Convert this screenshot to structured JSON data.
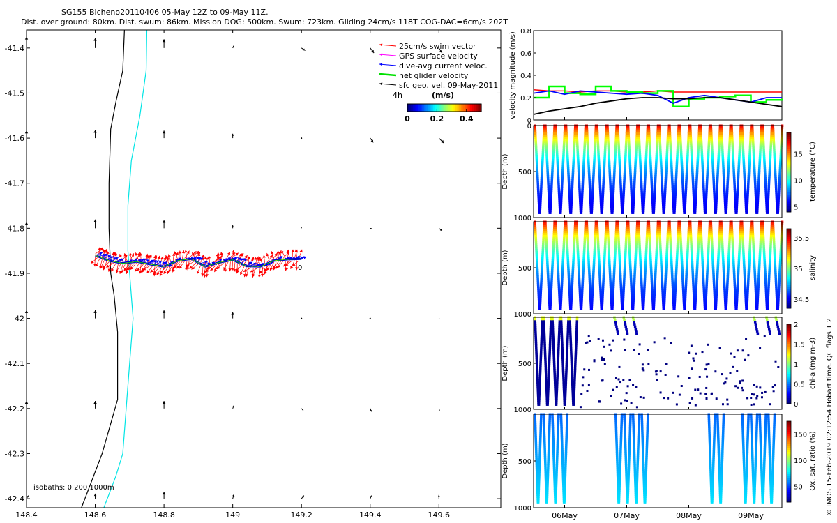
{
  "header": {
    "title_line1": "SG155 Bicheno20110406 05-May 12Z to 09-May 11Z.",
    "title_line2": "Dist. over ground: 80km. Dist. swum: 86km. Mission DOG: 500km. Swum: 723km. Gliding 24cm/s 118T COG-DAC=6cm/s 202T"
  },
  "side_note": "© IMOS 15-Feb-2019 02:12:54 Hobart time. QC flags 1 2",
  "chart_data": [
    {
      "id": "map",
      "type": "scatter",
      "xlim": [
        148.4,
        149.78
      ],
      "ylim": [
        -42.42,
        -41.36
      ],
      "x_ticks": [
        "148.4",
        "148.6",
        "148.8",
        "149",
        "149.2",
        "149.4",
        "149.6"
      ],
      "y_ticks": [
        "-41.4",
        "-41.5",
        "-41.6",
        "-41.7",
        "-41.8",
        "-41.9",
        "-42",
        "-42.1",
        "-42.2",
        "-42.3",
        "-42.4"
      ],
      "legend": {
        "placement": "top-right",
        "entries": [
          {
            "label": "25cm/s swim vector",
            "color": "#ff0000"
          },
          {
            "label": "GPS surface velocity",
            "color": "#ff00ff"
          },
          {
            "label": "dive-avg current veloc.",
            "color": "#0000ff"
          },
          {
            "label": "net glider velocity",
            "color": "#00e000"
          },
          {
            "label": "sfc geo. vel. 09-May-2011",
            "color": "#000000"
          }
        ],
        "time_label": "4h",
        "unit_label": "(m/s)"
      },
      "colorbar": {
        "ticks": [
          "0",
          "0.2",
          "0.4"
        ],
        "range": [
          0,
          0.5
        ]
      },
      "isobaths_label": "isobaths: 0   200  1000m",
      "end_marker": "0",
      "isobath_200": {
        "lon": [
          148.75,
          148.748,
          148.73,
          148.705,
          148.695,
          148.695,
          148.705,
          148.71,
          148.7,
          148.69,
          148.68,
          148.66,
          148.625
        ],
        "lat": [
          -41.36,
          -41.45,
          -41.55,
          -41.65,
          -41.75,
          -41.85,
          -41.95,
          -42.0,
          -42.1,
          -42.2,
          -42.3,
          -42.35,
          -42.42
        ]
      },
      "isobath_1000": {
        "lon": [
          148.685,
          148.68,
          148.66,
          148.645,
          148.64,
          148.64,
          148.645,
          148.655,
          148.665,
          148.665,
          148.62,
          148.585,
          148.56
        ],
        "lat": [
          -41.36,
          -41.45,
          -41.52,
          -41.58,
          -41.7,
          -41.8,
          -41.9,
          -41.95,
          -42.03,
          -42.18,
          -42.3,
          -42.37,
          -42.42
        ]
      },
      "track": {
        "lon": [
          148.6,
          148.64,
          148.68,
          148.72,
          148.76,
          148.8,
          148.84,
          148.88,
          148.92,
          148.96,
          149.0,
          149.04,
          149.08,
          149.12,
          149.16,
          149.2
        ],
        "lat": [
          -41.86,
          -41.872,
          -41.878,
          -41.874,
          -41.88,
          -41.885,
          -41.872,
          -41.868,
          -41.885,
          -41.876,
          -41.87,
          -41.884,
          -41.885,
          -41.872,
          -41.869,
          -41.868
        ]
      },
      "current_grid": {
        "lon": [
          148.4,
          148.6,
          148.8,
          149.0,
          149.2,
          149.4,
          149.6
        ],
        "lat": [
          -41.4,
          -41.6,
          -41.8,
          -42.0,
          -42.2,
          -42.4
        ],
        "u": [
          [
            0.0,
            0.0,
            0.0,
            0.02,
            0.06,
            0.06,
            0.05
          ],
          [
            0.0,
            0.0,
            0.0,
            0.0,
            0.0,
            0.05,
            0.08
          ],
          [
            0.0,
            0.0,
            0.0,
            0.0,
            0.0,
            0.03,
            0.05
          ],
          [
            0.0,
            0.0,
            0.0,
            0.0,
            0.0,
            0.0,
            0.01
          ],
          [
            0.0,
            0.0,
            0.0,
            0.02,
            0.03,
            0.02,
            0.01
          ],
          [
            0.03,
            0.0,
            0.0,
            0.02,
            0.04,
            0.02,
            0.0
          ]
        ],
        "v": [
          [
            0.18,
            0.16,
            0.14,
            0.04,
            -0.04,
            -0.08,
            -0.08
          ],
          [
            0.12,
            0.13,
            0.12,
            0.07,
            0.0,
            -0.07,
            -0.08
          ],
          [
            0.1,
            0.14,
            0.13,
            0.05,
            0.02,
            -0.01,
            -0.04
          ],
          [
            0.13,
            0.13,
            0.13,
            0.1,
            0.0,
            0.0,
            -0.01
          ],
          [
            0.12,
            0.12,
            0.12,
            0.05,
            -0.03,
            -0.05,
            -0.04
          ],
          [
            0.05,
            0.08,
            0.11,
            0.07,
            0.05,
            0.05,
            0.06
          ]
        ]
      }
    },
    {
      "id": "velocity",
      "type": "line",
      "ylabel": "velocity magnitude (m/s)",
      "ylim": [
        0,
        0.8
      ],
      "y_ticks": [
        "0",
        "0.2",
        "0.4",
        "0.6",
        "0.8"
      ],
      "x": [
        0,
        0.25,
        0.5,
        0.75,
        1.0,
        1.25,
        1.5,
        1.75,
        2.0,
        2.25,
        2.5,
        2.75,
        3.0,
        3.25,
        3.5,
        3.75,
        4.0
      ],
      "series": [
        {
          "color": "#ff0000",
          "values": [
            0.27,
            0.26,
            0.26,
            0.25,
            0.26,
            0.26,
            0.25,
            0.25,
            0.26,
            0.25,
            0.25,
            0.25,
            0.25,
            0.25,
            0.25,
            0.25,
            0.25
          ]
        },
        {
          "color": "#00ff00",
          "values": [
            0.2,
            0.3,
            0.24,
            0.23,
            0.3,
            0.26,
            0.25,
            0.24,
            0.26,
            0.12,
            0.19,
            0.2,
            0.21,
            0.22,
            0.16,
            0.18,
            0.19
          ]
        },
        {
          "color": "#0000ff",
          "values": [
            0.24,
            0.26,
            0.23,
            0.26,
            0.25,
            0.24,
            0.23,
            0.24,
            0.22,
            0.15,
            0.2,
            0.22,
            0.2,
            0.18,
            0.16,
            0.2,
            0.2
          ]
        },
        {
          "color": "#000000",
          "values": [
            0.05,
            0.08,
            0.1,
            0.12,
            0.15,
            0.17,
            0.19,
            0.2,
            0.2,
            0.19,
            0.19,
            0.2,
            0.2,
            0.18,
            0.16,
            0.14,
            0.12
          ]
        }
      ]
    },
    {
      "id": "temperature",
      "type": "scatter",
      "ylabel": "Depth (m)",
      "clabel": "temperature (°C)",
      "ylim": [
        0,
        1000
      ],
      "y_ticks": [
        "0",
        "500",
        "1000"
      ],
      "c_ticks": [
        "5",
        "10",
        "15"
      ],
      "clim": [
        4,
        19
      ],
      "value_range": [
        4.5,
        17.5
      ],
      "dives": 24
    },
    {
      "id": "salinity",
      "type": "scatter",
      "ylabel": "Depth (m)",
      "clabel": "salinity",
      "ylim": [
        0,
        1000
      ],
      "y_ticks": [
        "500",
        "1000"
      ],
      "c_ticks": [
        "34.5",
        "35",
        "35.5"
      ],
      "clim": [
        34.35,
        35.65
      ],
      "value_range": [
        34.4,
        35.5
      ],
      "dives": 24
    },
    {
      "id": "chla",
      "type": "scatter",
      "ylabel": "Depth (m)",
      "clabel": "chl-a (mg m-3)",
      "ylim": [
        0,
        1000
      ],
      "y_ticks": [
        "500",
        "1000"
      ],
      "c_ticks": [
        "0",
        "0.5",
        "1",
        "1.5",
        "2"
      ],
      "clim": [
        0,
        2
      ],
      "dives": 24
    },
    {
      "id": "oxygen",
      "type": "scatter",
      "ylabel": "Depth (m)",
      "clabel": "Ox. sat. ratio (%)",
      "ylim": [
        0,
        1000
      ],
      "y_ticks": [
        "500",
        "1000"
      ],
      "c_ticks": [
        "50",
        "100",
        "150"
      ],
      "clim": [
        20,
        175
      ],
      "dives": 24,
      "x_ticks": [
        "06May",
        "07May",
        "08May",
        "09May"
      ]
    }
  ]
}
